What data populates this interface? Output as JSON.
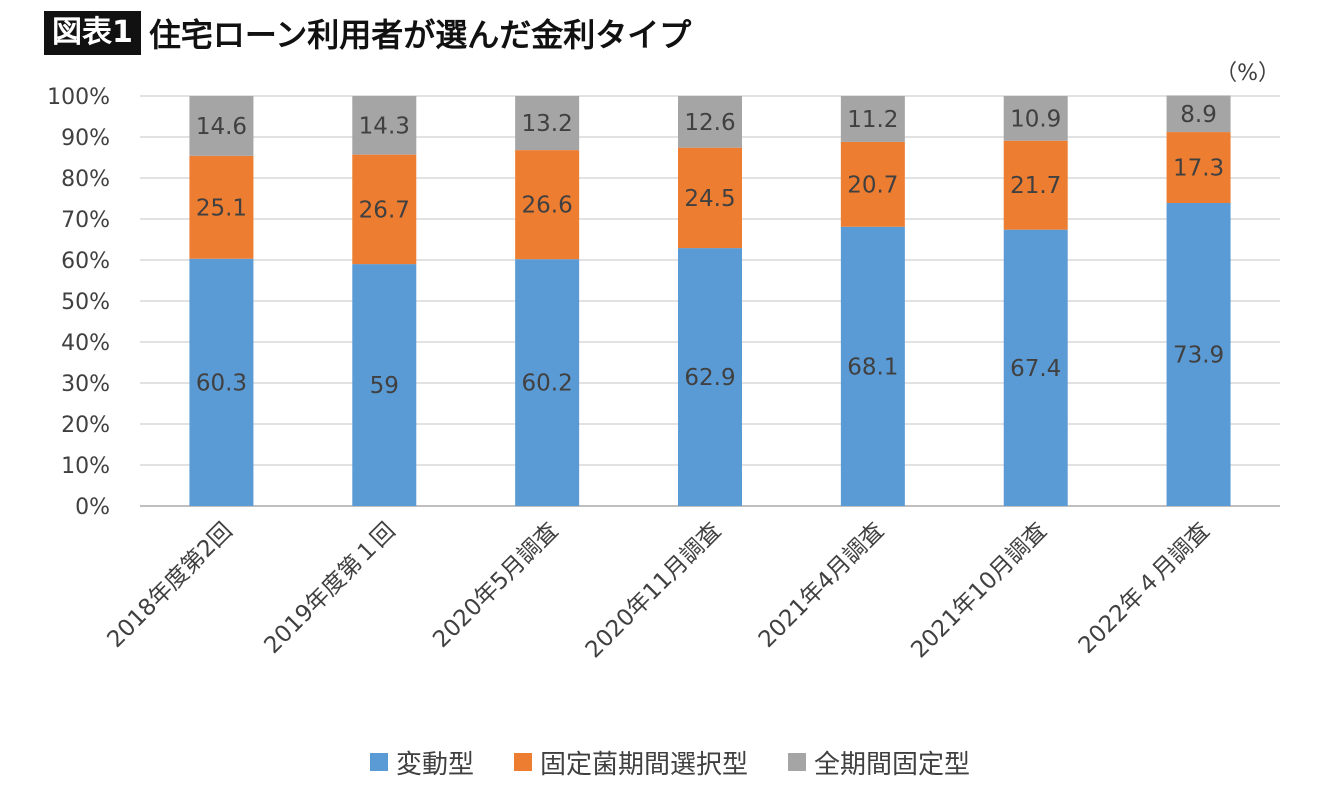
{
  "header": {
    "label": "図表1",
    "title": "住宅ローン利用者が選んだ金利タイプ"
  },
  "chart_data": {
    "type": "bar",
    "stacked": true,
    "unit_label": "（%）",
    "categories": [
      "2018年度第2回",
      "2019年度第１回",
      "2020年5月調査",
      "2020年11月調査",
      "2021年4月調査",
      "2021年10月調査",
      "2022年４月調査"
    ],
    "series": [
      {
        "name": "変動型",
        "color": "#5b9bd5",
        "values": [
          60.3,
          59,
          60.2,
          62.9,
          68.1,
          67.4,
          73.9
        ]
      },
      {
        "name": "固定菌期間選択型",
        "color": "#ed7d31",
        "values": [
          25.1,
          26.7,
          26.6,
          24.5,
          20.7,
          21.7,
          17.3
        ]
      },
      {
        "name": "全期間固定型",
        "color": "#a5a5a5",
        "values": [
          14.6,
          14.3,
          13.2,
          12.6,
          11.2,
          10.9,
          8.9
        ]
      }
    ],
    "y_ticks": [
      "0%",
      "10%",
      "20%",
      "30%",
      "40%",
      "50%",
      "60%",
      "70%",
      "80%",
      "90%",
      "100%"
    ],
    "ylim": [
      0,
      100
    ],
    "grid": true,
    "legend_position": "bottom"
  }
}
